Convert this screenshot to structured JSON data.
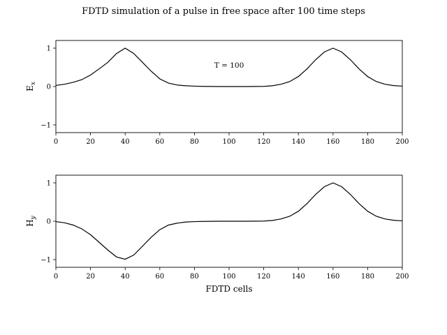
{
  "figure": {
    "title": "FDTD simulation of a pulse in free space after 100 time steps"
  },
  "chart_data": [
    {
      "type": "line",
      "id": "ex",
      "ylabel_main": "E",
      "ylabel_sub": "x",
      "xlabel": "",
      "xlim": [
        0,
        200
      ],
      "ylim": [
        -1.2,
        1.2
      ],
      "xticks": [
        0,
        20,
        40,
        60,
        80,
        100,
        120,
        140,
        160,
        180,
        200
      ],
      "yticks": [
        -1,
        0,
        1
      ],
      "annotation": {
        "text": "T = 100",
        "x": 100,
        "y": 0.55
      },
      "series": [
        {
          "values_x": [
            0,
            5,
            10,
            15,
            20,
            25,
            30,
            35,
            40,
            45,
            50,
            55,
            60,
            65,
            70,
            75,
            80,
            85,
            90,
            95,
            100,
            105,
            110,
            115,
            120,
            125,
            130,
            135,
            140,
            145,
            150,
            155,
            160,
            165,
            170,
            175,
            180,
            185,
            190,
            195,
            200
          ],
          "values_y": [
            0.028,
            0.06,
            0.11,
            0.18,
            0.3,
            0.46,
            0.63,
            0.86,
            1.0,
            0.86,
            0.63,
            0.4,
            0.2,
            0.09,
            0.04,
            0.02,
            0.01,
            0.005,
            0.002,
            0.0,
            0.0,
            0.0,
            0.0,
            0.002,
            0.005,
            0.02,
            0.06,
            0.13,
            0.26,
            0.46,
            0.7,
            0.9,
            1.0,
            0.9,
            0.7,
            0.46,
            0.26,
            0.13,
            0.06,
            0.025,
            0.01
          ]
        }
      ]
    },
    {
      "type": "line",
      "id": "hy",
      "ylabel_main": "H",
      "ylabel_sub": "y",
      "xlabel": "FDTD cells",
      "xlim": [
        0,
        200
      ],
      "ylim": [
        -1.2,
        1.2
      ],
      "xticks": [
        0,
        20,
        40,
        60,
        80,
        100,
        120,
        140,
        160,
        180,
        200
      ],
      "yticks": [
        -1,
        0,
        1
      ],
      "series": [
        {
          "values_x": [
            0,
            5,
            10,
            15,
            20,
            25,
            30,
            35,
            40,
            45,
            50,
            55,
            60,
            65,
            70,
            75,
            80,
            85,
            90,
            95,
            100,
            105,
            110,
            115,
            120,
            125,
            130,
            135,
            140,
            145,
            150,
            155,
            160,
            165,
            170,
            175,
            180,
            185,
            190,
            195,
            200
          ],
          "values_y": [
            -0.01,
            -0.04,
            -0.1,
            -0.2,
            -0.35,
            -0.55,
            -0.75,
            -0.93,
            -0.99,
            -0.88,
            -0.65,
            -0.42,
            -0.22,
            -0.1,
            -0.05,
            -0.02,
            -0.01,
            -0.005,
            -0.002,
            0.0,
            0.0,
            0.0,
            0.0,
            0.002,
            0.005,
            0.02,
            0.06,
            0.13,
            0.26,
            0.46,
            0.7,
            0.9,
            1.0,
            0.9,
            0.7,
            0.46,
            0.26,
            0.13,
            0.06,
            0.025,
            0.01
          ]
        }
      ]
    }
  ]
}
